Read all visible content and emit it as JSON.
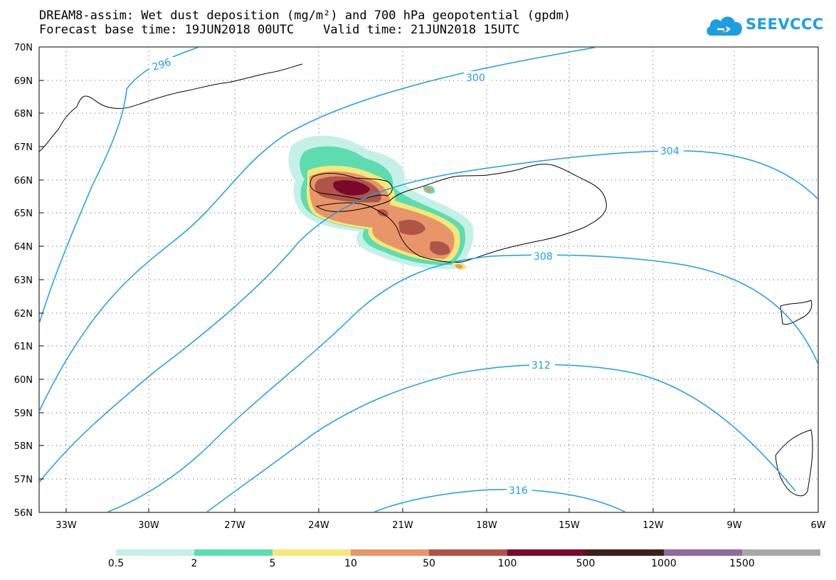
{
  "title": {
    "line1": "DREAM8-assim: Wet dust deposition (mg/m²) and 700 hPa geopotential (gpdm)",
    "line2": "Forecast base time: 19JUN2018 00UTC    Valid time: 21JUN2018 15UTC"
  },
  "logo": {
    "text": "SEEVCCC",
    "icon": "cloud-icon",
    "color": "#1e9ee2"
  },
  "axes": {
    "lat_labels": [
      "70N",
      "69N",
      "68N",
      "67N",
      "66N",
      "65N",
      "64N",
      "63N",
      "62N",
      "61N",
      "60N",
      "59N",
      "58N",
      "57N",
      "56N"
    ],
    "lon_labels": [
      "33W",
      "30W",
      "27W",
      "24W",
      "21W",
      "18W",
      "15W",
      "12W",
      "9W",
      "6W"
    ]
  },
  "contours": {
    "color": "#1e9ee2",
    "labels": [
      "296",
      "300",
      "304",
      "308",
      "312",
      "316"
    ]
  },
  "colorbar": {
    "labels": [
      "0.5",
      "2",
      "5",
      "10",
      "50",
      "100",
      "500",
      "1000",
      "1500"
    ],
    "colors": [
      "#c4f0e8",
      "#5ddcb0",
      "#f5e878",
      "#e8956a",
      "#b05448",
      "#7a0828",
      "#3a2218",
      "#906aa0",
      "#a8a8a8"
    ]
  }
}
